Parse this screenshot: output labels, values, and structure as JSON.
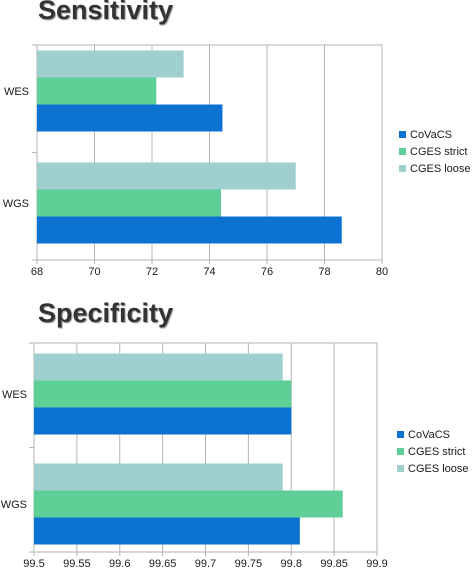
{
  "chart_data": [
    {
      "type": "bar",
      "orientation": "horizontal",
      "title": "Sensitivity",
      "categories": [
        "WES",
        "WGS"
      ],
      "series": [
        {
          "name": "CoVaCS",
          "color": "#0b72d2",
          "values": [
            74.45,
            78.6
          ]
        },
        {
          "name": "CGES strict",
          "color": "#5fcf98",
          "values": [
            72.15,
            74.4
          ]
        },
        {
          "name": "CGES loose",
          "color": "#9fcfcf",
          "values": [
            73.1,
            77.0
          ]
        }
      ],
      "xlim": [
        68,
        80
      ],
      "xticks": [
        "68",
        "70",
        "72",
        "74",
        "76",
        "78",
        "80"
      ],
      "grid": true,
      "legend": "right"
    },
    {
      "type": "bar",
      "orientation": "horizontal",
      "title": "Specificity",
      "categories": [
        "WES",
        "WGS"
      ],
      "series": [
        {
          "name": "CoVaCS",
          "color": "#0b72d2",
          "values": [
            99.8,
            99.81
          ]
        },
        {
          "name": "CGES strict",
          "color": "#5fcf98",
          "values": [
            99.8,
            99.86
          ]
        },
        {
          "name": "CGES loose",
          "color": "#9fcfcf",
          "values": [
            99.79,
            99.79
          ]
        }
      ],
      "xlim": [
        99.5,
        99.9
      ],
      "xticks": [
        "99.5",
        "99.55",
        "99.6",
        "99.65",
        "99.7",
        "99.75",
        "99.8",
        "99.85",
        "99.9"
      ],
      "grid": true,
      "legend": "right"
    }
  ]
}
